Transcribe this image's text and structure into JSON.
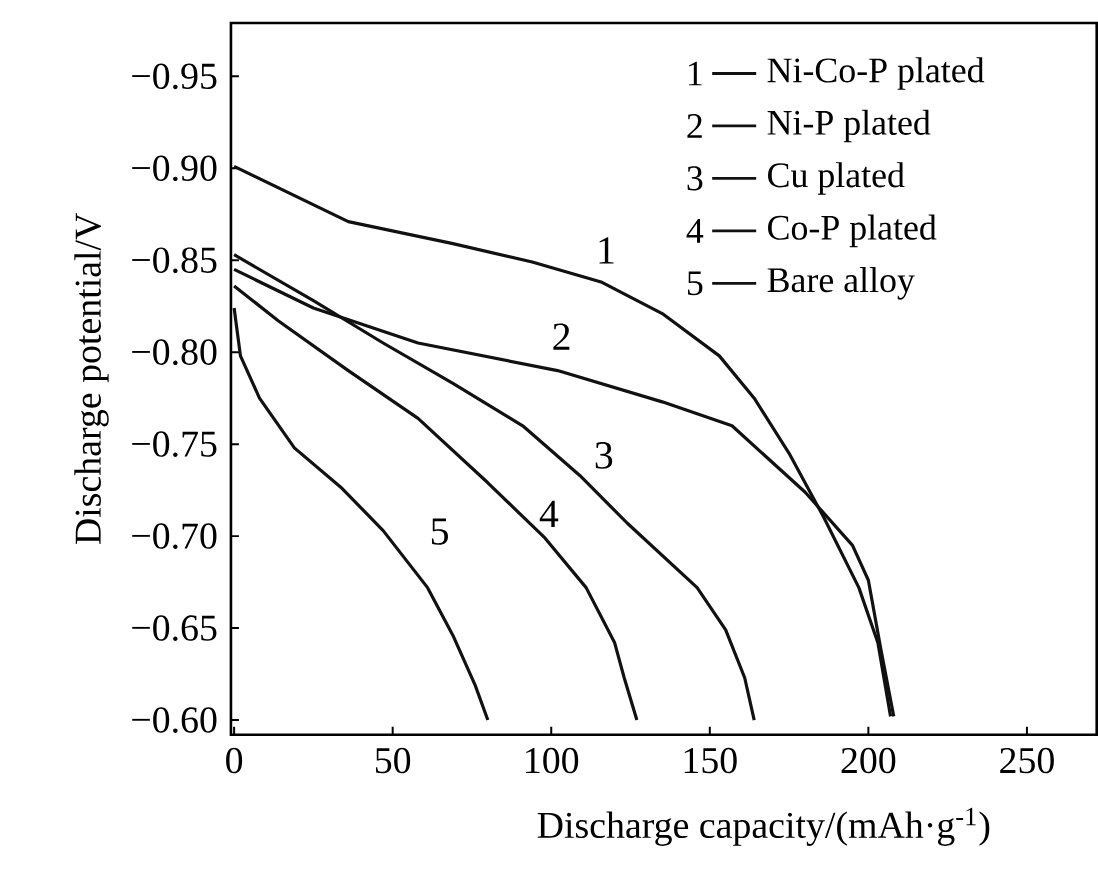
{
  "chart_data": {
    "type": "line",
    "xlabel": "Discharge capacity/(mAh·g$^{-1}$)",
    "ylabel": "Discharge potential/V",
    "xlim": [
      -1,
      272
    ],
    "ylim": [
      -0.592,
      -0.979
    ],
    "xticks": [
      0,
      50,
      100,
      150,
      200,
      250
    ],
    "yticks": [
      {
        "value": -0.95,
        "label": "−0.95"
      },
      {
        "value": -0.9,
        "label": "−0.90"
      },
      {
        "value": -0.85,
        "label": "−0.85"
      },
      {
        "value": -0.8,
        "label": "−0.80"
      },
      {
        "value": -0.75,
        "label": "−0.75"
      },
      {
        "value": -0.7,
        "label": "−0.70"
      },
      {
        "value": -0.65,
        "label": "−0.65"
      },
      {
        "value": -0.6,
        "label": "−0.60"
      }
    ],
    "legend": "top right",
    "line_style": "solid",
    "series": [
      {
        "name": "Ni-Co-P plated",
        "color": "#111111",
        "x": [
          0,
          36,
          69,
          94,
          116,
          135,
          153,
          164,
          175,
          186,
          197,
          203,
          207
        ],
        "values": [
          -0.901,
          -0.871,
          -0.859,
          -0.849,
          -0.838,
          -0.821,
          -0.798,
          -0.775,
          -0.745,
          -0.71,
          -0.672,
          -0.642,
          -0.602
        ]
      },
      {
        "name": "Ni-P plated",
        "color": "#111111",
        "x": [
          0,
          25,
          58,
          102,
          135,
          157,
          180,
          195,
          200,
          204,
          208
        ],
        "values": [
          -0.845,
          -0.824,
          -0.805,
          -0.79,
          -0.773,
          -0.76,
          -0.724,
          -0.695,
          -0.676,
          -0.638,
          -0.602
        ]
      },
      {
        "name": "Cu plated",
        "color": "#111111",
        "x": [
          0,
          25,
          47,
          69,
          91,
          109,
          124,
          146,
          155,
          161,
          164
        ],
        "values": [
          -0.853,
          -0.828,
          -0.805,
          -0.783,
          -0.76,
          -0.733,
          -0.707,
          -0.672,
          -0.649,
          -0.623,
          -0.6
        ]
      },
      {
        "name": "Co-P plated",
        "color": "#111111",
        "x": [
          0,
          14,
          36,
          58,
          80,
          98,
          111,
          120,
          123,
          127
        ],
        "values": [
          -0.836,
          -0.817,
          -0.79,
          -0.764,
          -0.729,
          -0.699,
          -0.672,
          -0.642,
          -0.623,
          -0.6
        ]
      },
      {
        "name": "Bare alloy",
        "color": "#111111",
        "x": [
          0,
          2,
          8,
          19,
          34,
          47,
          61,
          69,
          76,
          80
        ],
        "values": [
          -0.824,
          -0.798,
          -0.775,
          -0.748,
          -0.726,
          -0.703,
          -0.672,
          -0.646,
          -0.619,
          -0.6
        ]
      }
    ],
    "annotations": [
      "1",
      "2",
      "3",
      "4",
      "5",
      "1",
      "2",
      "3",
      "4",
      "5"
    ]
  }
}
